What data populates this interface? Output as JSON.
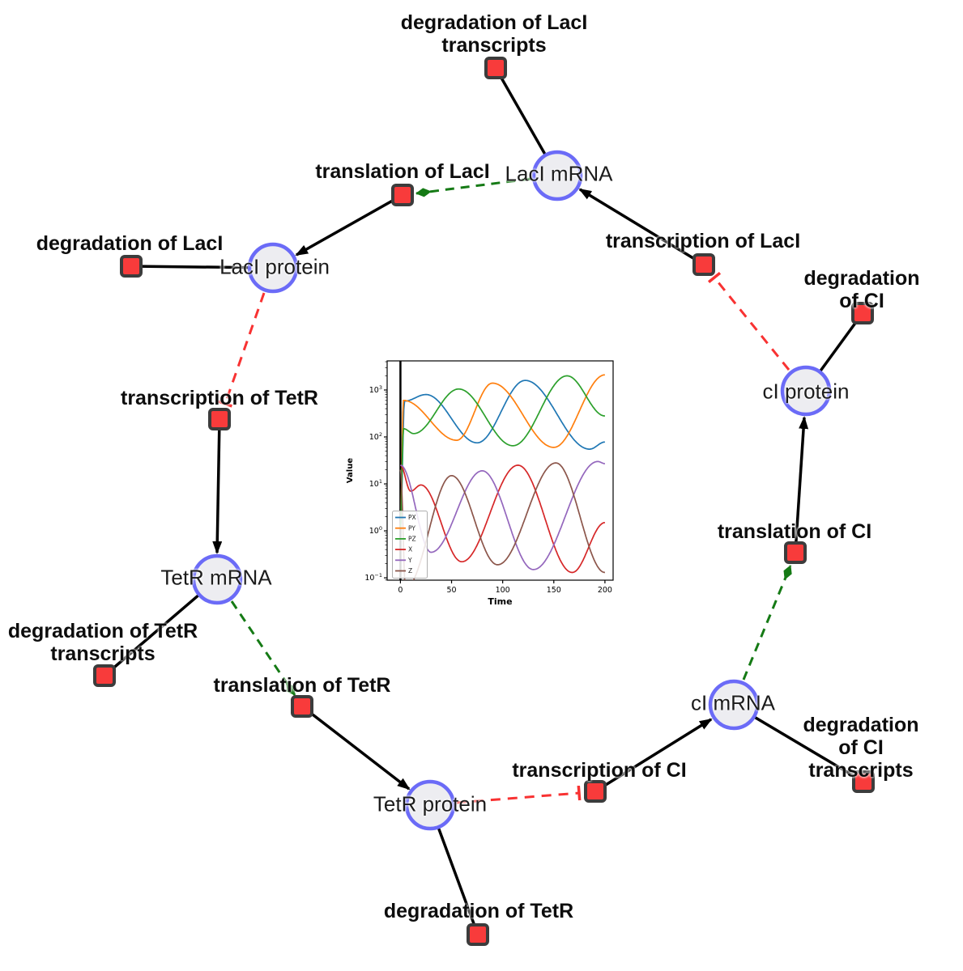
{
  "network": {
    "style": {
      "species_fill": "#ededf1",
      "species_stroke": "#6b6bf7",
      "reaction_fill": "#f83b3b",
      "reaction_stroke": "#3c3c3c",
      "edge_reaction_color": "#000000",
      "edge_modifier_color": "#157a15",
      "edge_inhibition_color": "#f83232"
    },
    "species": [
      {
        "label": "LacI mRNA"
      },
      {
        "label": "LacI protein"
      },
      {
        "label": "TetR mRNA"
      },
      {
        "label": "TetR protein"
      },
      {
        "label": "cI mRNA"
      },
      {
        "label": "cI protein"
      }
    ],
    "reactions": [
      {
        "label": "degradation of LacI\ntranscripts"
      },
      {
        "label": "translation of LacI"
      },
      {
        "label": "degradation of LacI"
      },
      {
        "label": "transcription of LacI"
      },
      {
        "label": "degradation of CI"
      },
      {
        "label": "transcription of TetR"
      },
      {
        "label": "degradation of TetR\ntranscripts"
      },
      {
        "label": "translation of TetR"
      },
      {
        "label": "translation of CI"
      },
      {
        "label": "transcription of CI"
      },
      {
        "label": "degradation of CI\ntranscripts"
      },
      {
        "label": "degradation of TetR"
      }
    ]
  },
  "chart_data": {
    "type": "line",
    "title": "",
    "xlabel": "Time",
    "ylabel": "Value",
    "yscale": "log",
    "xlim": [
      -13,
      208
    ],
    "ylim_log": [
      -1.05,
      3.62
    ],
    "x_ticks": [
      0,
      50,
      100,
      150,
      200
    ],
    "y_ticks_log": [
      -1,
      0,
      1,
      2,
      3
    ],
    "grid": false,
    "legend_position": "lower left",
    "initial_vline_at_t0": true,
    "series": [
      {
        "name": "PX",
        "color": "#1f77b4",
        "points": [
          [
            0,
            1.2
          ],
          [
            4,
            580
          ],
          [
            25,
            800
          ],
          [
            75,
            75
          ],
          [
            122,
            1600
          ],
          [
            185,
            55
          ],
          [
            200,
            78
          ]
        ]
      },
      {
        "name": "PY",
        "color": "#ff7f0e",
        "points": [
          [
            0,
            1.2
          ],
          [
            3,
            600
          ],
          [
            55,
            85
          ],
          [
            90,
            1400
          ],
          [
            150,
            60
          ],
          [
            200,
            2100
          ]
        ]
      },
      {
        "name": "PZ",
        "color": "#2ca02c",
        "points": [
          [
            0,
            1.2
          ],
          [
            3,
            150
          ],
          [
            13,
            118
          ],
          [
            57,
            1050
          ],
          [
            110,
            65
          ],
          [
            163,
            2000
          ],
          [
            200,
            280
          ]
        ]
      },
      {
        "name": "X",
        "color": "#d62728",
        "points": [
          [
            0,
            25
          ],
          [
            10,
            7
          ],
          [
            20,
            9.5
          ],
          [
            60,
            0.22
          ],
          [
            115,
            25
          ],
          [
            168,
            0.13
          ],
          [
            200,
            1.5
          ]
        ]
      },
      {
        "name": "Y",
        "color": "#9467bd",
        "points": [
          [
            0,
            25
          ],
          [
            30,
            0.35
          ],
          [
            80,
            19
          ],
          [
            130,
            0.15
          ],
          [
            193,
            30
          ],
          [
            200,
            27
          ]
        ]
      },
      {
        "name": "Z",
        "color": "#8c564b",
        "points": [
          [
            0,
            20
          ],
          [
            5,
            0.06
          ],
          [
            50,
            15
          ],
          [
            95,
            0.19
          ],
          [
            152,
            28
          ],
          [
            200,
            0.13
          ]
        ]
      }
    ]
  }
}
